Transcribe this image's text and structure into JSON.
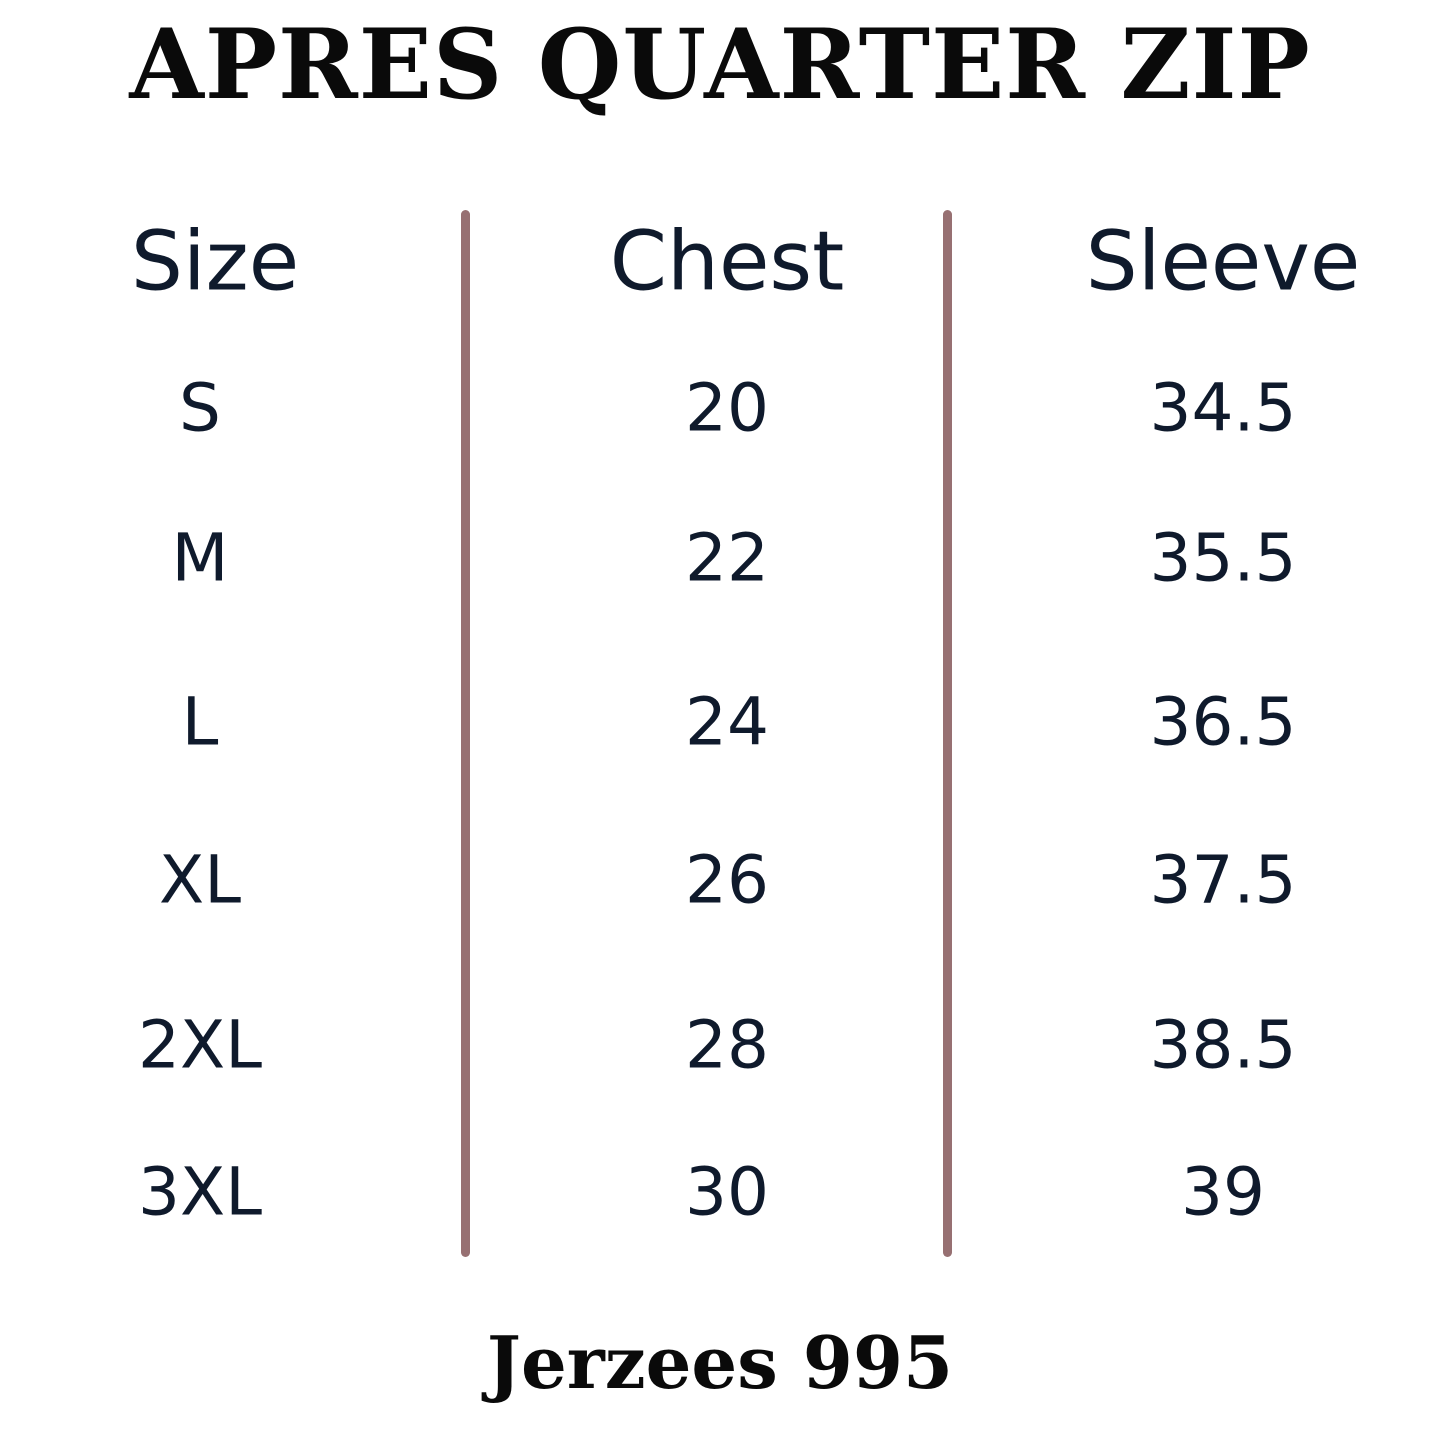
{
  "header": {
    "title": "APRES QUARTER ZIP"
  },
  "table": {
    "columns": [
      "Size",
      "Chest",
      "Sleeve"
    ],
    "rows": [
      [
        "S",
        20,
        34.5
      ],
      [
        "M",
        22,
        35.5
      ],
      [
        "L",
        24,
        36.5
      ],
      [
        "XL",
        26,
        37.5
      ],
      [
        "2XL",
        28,
        38.5
      ],
      [
        "3XL",
        30,
        39
      ]
    ]
  },
  "footer": {
    "text": "Jerzees 995"
  }
}
